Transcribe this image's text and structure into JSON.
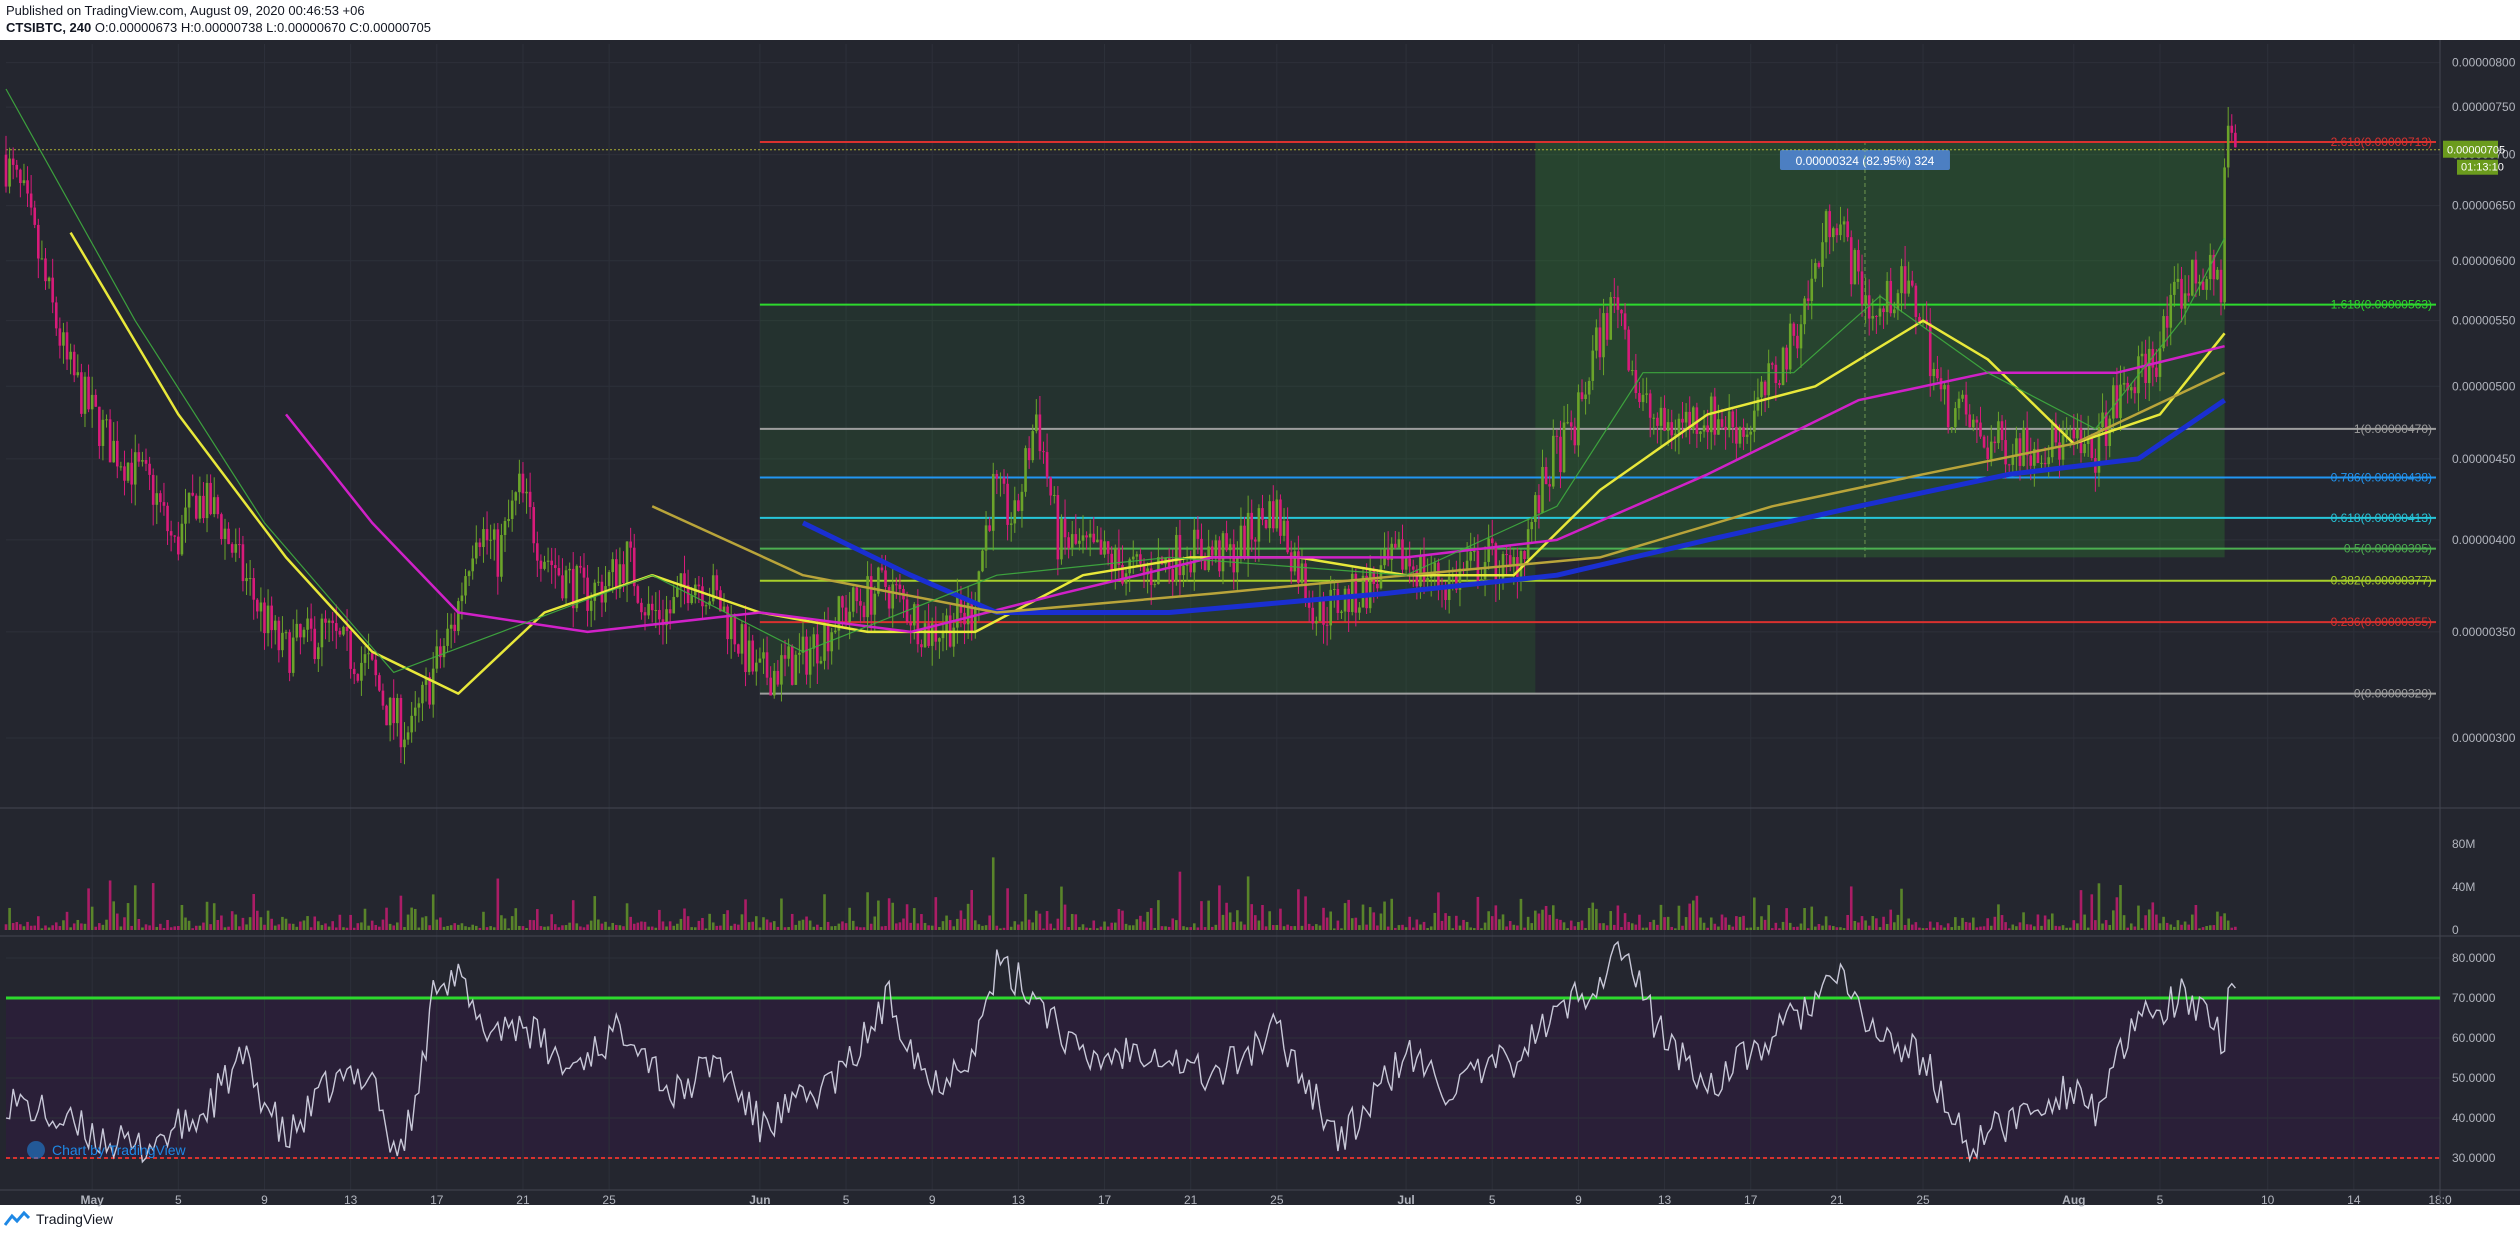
{
  "header": {
    "published": "Published on TradingView.com, August 09, 2020 00:46:53 +06",
    "symbol": "CTSIBTC, 240",
    "ohlc": "O:0.00000673 H:0.00000738 L:0.00000670 C:0.00000705"
  },
  "footer": {
    "brand": "TradingView",
    "icon": "tradingview-logo-icon"
  },
  "watermark": "Chart by TradingView",
  "colors": {
    "background": "#24262f",
    "grid": "#2d303a",
    "up": "#6ba42a",
    "down": "#d81b7a",
    "ema_yellow": "#e8e83a",
    "ma_magenta": "#d021c8",
    "ma_blue": "#1a2fd1",
    "ma_olive": "#b9a43a",
    "rsi_line": "#c8c8d8",
    "rsi_upper": "#2dd92d",
    "rsi_lower": "#d9312f",
    "last_price_badge": "#6b9b1d"
  },
  "chart_data": [
    {
      "type": "line",
      "panel": "price",
      "title": "CTSIBTC, 240",
      "y_axis_ticks": [
        "0.00000800",
        "0.00000750",
        "0.00000700",
        "0.00000650",
        "0.00000600",
        "0.00000550",
        "0.00000500",
        "0.00000450",
        "0.00000400",
        "0.00000350",
        "0.00000300"
      ],
      "ylim": [
        2.71e-06,
        8.22e-06
      ],
      "x_axis_ticks": [
        "May",
        "5",
        "9",
        "13",
        "17",
        "21",
        "25",
        "Jun",
        "5",
        "9",
        "13",
        "17",
        "21",
        "25",
        "Jul",
        "5",
        "9",
        "13",
        "17",
        "21",
        "25",
        "Aug",
        "5",
        "10",
        "14",
        "18:0"
      ],
      "x_range": [
        "2020-04-27",
        "2020-08-18"
      ],
      "grid": true,
      "price_path": [
        [
          "2020-04-27",
          7e-06
        ],
        [
          "2020-04-28",
          6.55e-06
        ],
        [
          "2020-04-29",
          5.8e-06
        ],
        [
          "2020-04-30",
          5.15e-06
        ],
        [
          "2020-05-01",
          4.85e-06
        ],
        [
          "2020-05-02",
          4.6e-06
        ],
        [
          "2020-05-03",
          4.45e-06
        ],
        [
          "2020-05-04",
          4.3e-06
        ],
        [
          "2020-05-05",
          3.95e-06
        ],
        [
          "2020-05-06",
          4.25e-06
        ],
        [
          "2020-05-07",
          4.15e-06
        ],
        [
          "2020-05-08",
          3.85e-06
        ],
        [
          "2020-05-09",
          3.6e-06
        ],
        [
          "2020-05-10",
          3.4e-06
        ],
        [
          "2020-05-11",
          3.45e-06
        ],
        [
          "2020-05-12",
          3.5e-06
        ],
        [
          "2020-05-13",
          3.4e-06
        ],
        [
          "2020-05-14",
          3.33e-06
        ],
        [
          "2020-05-15",
          3.1e-06
        ],
        [
          "2020-05-16",
          3.02e-06
        ],
        [
          "2020-05-17",
          3.3e-06
        ],
        [
          "2020-05-18",
          3.55e-06
        ],
        [
          "2020-05-19",
          4.1e-06
        ],
        [
          "2020-05-20",
          3.9e-06
        ],
        [
          "2020-05-21",
          4.3e-06
        ],
        [
          "2020-05-22",
          3.95e-06
        ],
        [
          "2020-05-23",
          3.8e-06
        ],
        [
          "2020-05-24",
          3.7e-06
        ],
        [
          "2020-05-25",
          3.75e-06
        ],
        [
          "2020-05-26",
          3.9e-06
        ],
        [
          "2020-05-27",
          3.6e-06
        ],
        [
          "2020-05-28",
          3.6e-06
        ],
        [
          "2020-05-29",
          3.8e-06
        ],
        [
          "2020-05-30",
          3.7e-06
        ],
        [
          "2020-05-31",
          3.5e-06
        ],
        [
          "2020-06-01",
          3.28e-06
        ],
        [
          "2020-06-03",
          3.35e-06
        ],
        [
          "2020-06-05",
          3.6e-06
        ],
        [
          "2020-06-07",
          3.75e-06
        ],
        [
          "2020-06-09",
          3.5e-06
        ],
        [
          "2020-06-11",
          3.6e-06
        ],
        [
          "2020-06-12",
          4.3e-06
        ],
        [
          "2020-06-13",
          4.1e-06
        ],
        [
          "2020-06-14",
          4.8e-06
        ],
        [
          "2020-06-15",
          4e-06
        ],
        [
          "2020-06-17",
          3.9e-06
        ],
        [
          "2020-06-19",
          3.8e-06
        ],
        [
          "2020-06-21",
          3.95e-06
        ],
        [
          "2020-06-23",
          3.9e-06
        ],
        [
          "2020-06-25",
          4.2e-06
        ],
        [
          "2020-06-27",
          3.6e-06
        ],
        [
          "2020-06-29",
          3.7e-06
        ],
        [
          "2020-07-01",
          3.9e-06
        ],
        [
          "2020-07-03",
          3.75e-06
        ],
        [
          "2020-07-05",
          3.9e-06
        ],
        [
          "2020-07-06",
          3.8e-06
        ],
        [
          "2020-07-07",
          4.1e-06
        ],
        [
          "2020-07-08",
          4.5e-06
        ],
        [
          "2020-07-09",
          4.7e-06
        ],
        [
          "2020-07-10",
          5.3e-06
        ],
        [
          "2020-07-11",
          5.7e-06
        ],
        [
          "2020-07-12",
          4.9e-06
        ],
        [
          "2020-07-13",
          4.7e-06
        ],
        [
          "2020-07-15",
          4.8e-06
        ],
        [
          "2020-07-17",
          4.7e-06
        ],
        [
          "2020-07-19",
          5.3e-06
        ],
        [
          "2020-07-20",
          5.8e-06
        ],
        [
          "2020-07-21",
          6.5e-06
        ],
        [
          "2020-07-22",
          5.9e-06
        ],
        [
          "2020-07-23",
          5.5e-06
        ],
        [
          "2020-07-24",
          5.8e-06
        ],
        [
          "2020-07-25",
          5.6e-06
        ],
        [
          "2020-07-26",
          4.9e-06
        ],
        [
          "2020-07-27",
          4.8e-06
        ],
        [
          "2020-07-28",
          4.6e-06
        ],
        [
          "2020-07-30",
          4.6e-06
        ],
        [
          "2020-08-01",
          4.6e-06
        ],
        [
          "2020-08-02",
          4.5e-06
        ],
        [
          "2020-08-03",
          4.85e-06
        ],
        [
          "2020-08-05",
          5.25e-06
        ],
        [
          "2020-08-06",
          5.7e-06
        ],
        [
          "2020-08-07",
          5.9e-06
        ],
        [
          "2020-08-08",
          5.8e-06
        ],
        [
          "2020-08-08T06",
          7.4e-06
        ],
        [
          "2020-08-08T14",
          7.05e-06
        ]
      ],
      "series": [
        {
          "path": "ema_fast",
          "color": "#e8e83a",
          "values": [
            [
              "2020-04-30",
              6.25e-06
            ],
            [
              "2020-05-05",
              4.8e-06
            ],
            [
              "2020-05-10",
              3.9e-06
            ],
            [
              "2020-05-14",
              3.4e-06
            ],
            [
              "2020-05-18",
              3.2e-06
            ],
            [
              "2020-05-22",
              3.6e-06
            ],
            [
              "2020-05-27",
              3.8e-06
            ],
            [
              "2020-06-01",
              3.6e-06
            ],
            [
              "2020-06-06",
              3.5e-06
            ],
            [
              "2020-06-11",
              3.5e-06
            ],
            [
              "2020-06-16",
              3.8e-06
            ],
            [
              "2020-06-21",
              3.9e-06
            ],
            [
              "2020-06-26",
              3.9e-06
            ],
            [
              "2020-07-01",
              3.8e-06
            ],
            [
              "2020-07-06",
              3.8e-06
            ],
            [
              "2020-07-10",
              4.3e-06
            ],
            [
              "2020-07-15",
              4.8e-06
            ],
            [
              "2020-07-20",
              5e-06
            ],
            [
              "2020-07-25",
              5.5e-06
            ],
            [
              "2020-07-28",
              5.2e-06
            ],
            [
              "2020-08-01",
              4.6e-06
            ],
            [
              "2020-08-05",
              4.8e-06
            ],
            [
              "2020-08-08",
              5.4e-06
            ]
          ]
        },
        {
          "path": "ma_magenta",
          "color": "#d021c8",
          "values": [
            [
              "2020-05-10",
              4.8e-06
            ],
            [
              "2020-05-14",
              4.1e-06
            ],
            [
              "2020-05-18",
              3.6e-06
            ],
            [
              "2020-05-24",
              3.5e-06
            ],
            [
              "2020-06-01",
              3.6e-06
            ],
            [
              "2020-06-08",
              3.5e-06
            ],
            [
              "2020-06-15",
              3.7e-06
            ],
            [
              "2020-06-22",
              3.9e-06
            ],
            [
              "2020-07-01",
              3.9e-06
            ],
            [
              "2020-07-08",
              4e-06
            ],
            [
              "2020-07-15",
              4.4e-06
            ],
            [
              "2020-07-22",
              4.9e-06
            ],
            [
              "2020-07-28",
              5.1e-06
            ],
            [
              "2020-08-03",
              5.1e-06
            ],
            [
              "2020-08-08",
              5.3e-06
            ]
          ]
        },
        {
          "path": "ma_blue",
          "color": "#1a2fd1",
          "values": [
            [
              "2020-06-03",
              4.1e-06
            ],
            [
              "2020-06-08",
              3.8e-06
            ],
            [
              "2020-06-12",
              3.6e-06
            ],
            [
              "2020-06-20",
              3.6e-06
            ],
            [
              "2020-06-30",
              3.7e-06
            ],
            [
              "2020-07-08",
              3.8e-06
            ],
            [
              "2020-07-15",
              4e-06
            ],
            [
              "2020-07-22",
              4.2e-06
            ],
            [
              "2020-07-29",
              4.4e-06
            ],
            [
              "2020-08-04",
              4.5e-06
            ],
            [
              "2020-08-08",
              4.9e-06
            ]
          ]
        },
        {
          "path": "ma_olive",
          "color": "#b9a43a",
          "values": [
            [
              "2020-05-27",
              4.2e-06
            ],
            [
              "2020-06-03",
              3.8e-06
            ],
            [
              "2020-06-12",
              3.6e-06
            ],
            [
              "2020-06-22",
              3.7e-06
            ],
            [
              "2020-07-01",
              3.8e-06
            ],
            [
              "2020-07-10",
              3.9e-06
            ],
            [
              "2020-07-18",
              4.2e-06
            ],
            [
              "2020-07-25",
              4.4e-06
            ],
            [
              "2020-08-01",
              4.6e-06
            ],
            [
              "2020-08-08",
              5.1e-06
            ]
          ]
        }
      ],
      "fib_levels": [
        {
          "label": "2.618(0.00000713)",
          "value": 7.13e-06,
          "color": "#d9312f"
        },
        {
          "label": "1.618(0.00000563)",
          "value": 5.63e-06,
          "color": "#2dd92d"
        },
        {
          "label": "1(0.00000470)",
          "value": 4.7e-06,
          "color": "#9e9e9e"
        },
        {
          "label": "0.786(0.00000438)",
          "value": 4.38e-06,
          "color": "#2196f3"
        },
        {
          "label": "0.618(0.00000413)",
          "value": 4.13e-06,
          "color": "#26c6da"
        },
        {
          "label": "0.5(0.00000395)",
          "value": 3.95e-06,
          "color": "#4caf50"
        },
        {
          "label": "0.382(0.00000377)",
          "value": 3.77e-06,
          "color": "#a8d02a"
        },
        {
          "label": "0.236(0.00000355)",
          "value": 3.55e-06,
          "color": "#d9312f"
        },
        {
          "label": "0(0.00000320)",
          "value": 3.2e-06,
          "color": "#9e9e9e"
        }
      ],
      "fib_range": [
        "2020-06-01",
        "2020-08-08"
      ],
      "measure_box": {
        "label": "0.00000324 (82.95%) 324",
        "from_date": "2020-07-07",
        "to_date": "2020-08-08",
        "from_value": 3.9e-06,
        "to_value": 7.14e-06
      },
      "last_price": {
        "label": "0.00000705",
        "value": 7.05e-06,
        "countdown": "01:13:10"
      }
    },
    {
      "type": "bar",
      "panel": "volume",
      "y_axis_ticks": [
        "80M",
        "40M",
        "0"
      ],
      "ylim": [
        0,
        110000000
      ]
    },
    {
      "type": "line",
      "panel": "rsi",
      "y_axis_ticks": [
        "80.0000",
        "70.0000",
        "60.0000",
        "50.0000",
        "40.0000",
        "30.0000"
      ],
      "ylim": [
        22,
        85
      ],
      "upper_band": 70,
      "lower_band": 30,
      "rsi_path": [
        [
          "2020-04-27",
          45
        ],
        [
          "2020-04-30",
          38
        ],
        [
          "2020-05-03",
          32
        ],
        [
          "2020-05-06",
          40
        ],
        [
          "2020-05-08",
          55
        ],
        [
          "2020-05-10",
          34
        ],
        [
          "2020-05-12",
          48
        ],
        [
          "2020-05-14",
          52
        ],
        [
          "2020-05-15",
          30
        ],
        [
          "2020-05-16",
          42
        ],
        [
          "2020-05-17",
          76
        ],
        [
          "2020-05-18",
          75
        ],
        [
          "2020-05-19",
          62
        ],
        [
          "2020-05-21",
          64
        ],
        [
          "2020-05-23",
          52
        ],
        [
          "2020-05-25",
          60
        ],
        [
          "2020-05-26",
          63
        ],
        [
          "2020-05-28",
          45
        ],
        [
          "2020-05-30",
          55
        ],
        [
          "2020-06-01",
          38
        ],
        [
          "2020-06-03",
          44
        ],
        [
          "2020-06-05",
          52
        ],
        [
          "2020-06-07",
          70
        ],
        [
          "2020-06-09",
          48
        ],
        [
          "2020-06-11",
          58
        ],
        [
          "2020-06-12",
          78
        ],
        [
          "2020-06-14",
          70
        ],
        [
          "2020-06-16",
          54
        ],
        [
          "2020-06-19",
          58
        ],
        [
          "2020-06-22",
          50
        ],
        [
          "2020-06-25",
          62
        ],
        [
          "2020-06-28",
          34
        ],
        [
          "2020-07-01",
          56
        ],
        [
          "2020-07-03",
          47
        ],
        [
          "2020-07-06",
          55
        ],
        [
          "2020-07-08",
          66
        ],
        [
          "2020-07-10",
          75
        ],
        [
          "2020-07-11",
          83
        ],
        [
          "2020-07-12",
          70
        ],
        [
          "2020-07-13",
          60
        ],
        [
          "2020-07-15",
          48
        ],
        [
          "2020-07-18",
          60
        ],
        [
          "2020-07-20",
          70
        ],
        [
          "2020-07-21",
          75
        ],
        [
          "2020-07-23",
          60
        ],
        [
          "2020-07-25",
          55
        ],
        [
          "2020-07-27",
          33
        ],
        [
          "2020-07-30",
          42
        ],
        [
          "2020-08-01",
          48
        ],
        [
          "2020-08-02",
          42
        ],
        [
          "2020-08-04",
          64
        ],
        [
          "2020-08-06",
          70
        ],
        [
          "2020-08-08",
          60
        ],
        [
          "2020-08-08T06",
          79
        ],
        [
          "2020-08-08T14",
          67
        ]
      ]
    }
  ]
}
